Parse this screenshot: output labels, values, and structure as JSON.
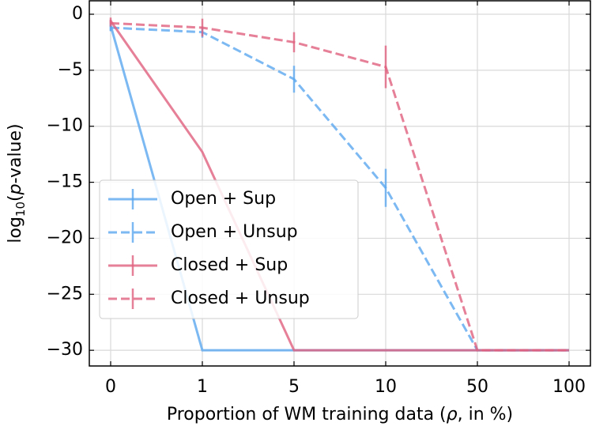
{
  "chart_data": {
    "type": "line",
    "ylabel_parts": [
      "log",
      "10",
      "(",
      "p",
      "-value)"
    ],
    "xlabel_parts": [
      "Proportion of WM training data (",
      "ρ",
      ", in %)"
    ],
    "categories": [
      "0",
      "1",
      "5",
      "10",
      "50",
      "100"
    ],
    "series": [
      {
        "name": "Open + Sup",
        "color": "#5ba8f0",
        "dash": false,
        "values": [
          -1.0,
          -30,
          -30,
          -30,
          -30,
          -30
        ],
        "errors": [
          0.5,
          0,
          0,
          0,
          0,
          0
        ]
      },
      {
        "name": "Open + Unsup",
        "color": "#5ba8f0",
        "dash": true,
        "values": [
          -1.2,
          -1.6,
          -5.8,
          -15.5,
          -30,
          -30
        ],
        "errors": [
          0.3,
          0.5,
          1.2,
          1.7,
          0,
          0
        ]
      },
      {
        "name": "Closed + Sup",
        "color": "#e0607e",
        "dash": false,
        "values": [
          -0.6,
          -12.3,
          -30,
          -30,
          -30,
          -30
        ],
        "errors": [
          0.3,
          0,
          0,
          0,
          0,
          0
        ]
      },
      {
        "name": "Closed + Unsup",
        "color": "#e0607e",
        "dash": true,
        "values": [
          -0.8,
          -1.2,
          -2.5,
          -4.7,
          -30,
          -30
        ],
        "errors": [
          0.3,
          0.8,
          0.9,
          1.9,
          0,
          0
        ]
      }
    ],
    "ylim": [
      -31.4,
      1.2
    ],
    "yticks": [
      {
        "value": 0,
        "label": "0"
      },
      {
        "value": -5,
        "label": "−5"
      },
      {
        "value": -10,
        "label": "−10"
      },
      {
        "value": -15,
        "label": "−15"
      },
      {
        "value": -20,
        "label": "−20"
      },
      {
        "value": -25,
        "label": "−25"
      },
      {
        "value": -30,
        "label": "−30"
      }
    ],
    "grid": true
  }
}
